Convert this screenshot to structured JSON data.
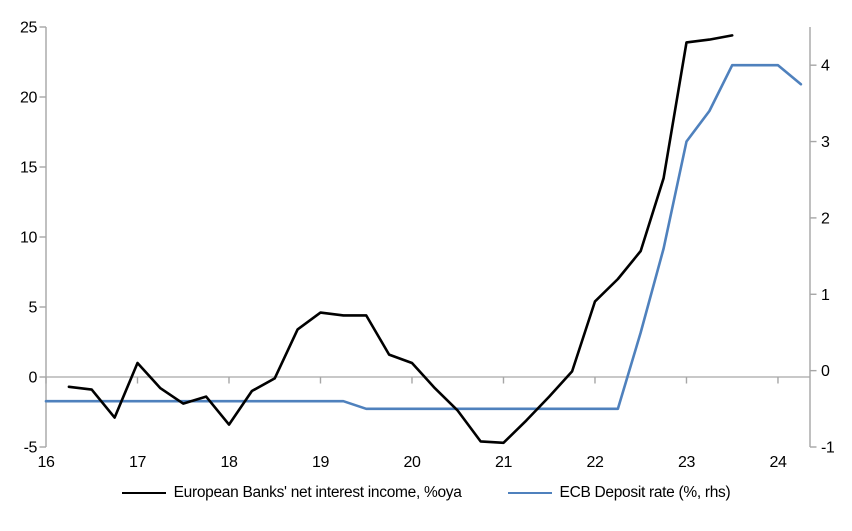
{
  "chart_data": {
    "type": "line",
    "title": "",
    "xlabel": "",
    "ylabel_left": "",
    "ylabel_right": "",
    "grid": "zero-line-only",
    "legend_position": "bottom-center",
    "x_axis": {
      "tick_labels": [
        "16",
        "17",
        "18",
        "19",
        "20",
        "21",
        "22",
        "23",
        "24"
      ],
      "tick_values": [
        2016,
        2017,
        2018,
        2019,
        2020,
        2021,
        2022,
        2023,
        2024
      ],
      "min": 2016,
      "max": 2024.35
    },
    "left_axis": {
      "tick_values": [
        -5,
        0,
        5,
        10,
        15,
        20,
        25
      ],
      "min": -5,
      "max": 25
    },
    "right_axis": {
      "tick_values": [
        -1,
        0,
        1,
        2,
        3,
        4
      ],
      "min": -1,
      "max": 4.5
    },
    "series": [
      {
        "name": "European Banks' net interest income, %oya",
        "axis": "left",
        "color": "#000000",
        "x": [
          2016.25,
          2016.5,
          2016.75,
          2017.0,
          2017.25,
          2017.5,
          2017.75,
          2018.0,
          2018.25,
          2018.5,
          2018.75,
          2019.0,
          2019.25,
          2019.5,
          2019.75,
          2020.0,
          2020.25,
          2020.5,
          2020.75,
          2021.0,
          2021.25,
          2021.5,
          2021.75,
          2022.0,
          2022.25,
          2022.5,
          2022.75,
          2023.0,
          2023.25,
          2023.5
        ],
        "values": [
          -0.7,
          -0.9,
          -2.9,
          1.0,
          -0.8,
          -1.9,
          -1.4,
          -3.4,
          -1.0,
          -0.1,
          3.4,
          4.6,
          4.4,
          4.4,
          1.6,
          1.0,
          -0.8,
          -2.4,
          -4.6,
          -4.7,
          -3.1,
          -1.4,
          0.4,
          5.4,
          7.0,
          9.0,
          14.2,
          23.9,
          24.1,
          24.4
        ]
      },
      {
        "name": "ECB Deposit rate (%, rhs)",
        "axis": "right",
        "color": "#4F81BD",
        "x": [
          2016.0,
          2016.25,
          2016.5,
          2016.75,
          2017.0,
          2017.25,
          2017.5,
          2017.75,
          2018.0,
          2018.25,
          2018.5,
          2018.75,
          2019.0,
          2019.25,
          2019.5,
          2019.75,
          2020.0,
          2020.25,
          2020.5,
          2020.75,
          2021.0,
          2021.25,
          2021.5,
          2021.75,
          2022.0,
          2022.25,
          2022.5,
          2022.75,
          2023.0,
          2023.25,
          2023.5,
          2023.75,
          2024.0,
          2024.25
        ],
        "values": [
          -0.4,
          -0.4,
          -0.4,
          -0.4,
          -0.4,
          -0.4,
          -0.4,
          -0.4,
          -0.4,
          -0.4,
          -0.4,
          -0.4,
          -0.4,
          -0.4,
          -0.5,
          -0.5,
          -0.5,
          -0.5,
          -0.5,
          -0.5,
          -0.5,
          -0.5,
          -0.5,
          -0.5,
          -0.5,
          -0.5,
          0.5,
          1.6,
          3.0,
          3.4,
          4.0,
          4.0,
          4.0,
          3.75
        ]
      }
    ]
  },
  "colors": {
    "axis": "#A6A6A6",
    "zero_line": "#A6A6A6",
    "text": "#000000",
    "background": "#FFFFFF"
  }
}
